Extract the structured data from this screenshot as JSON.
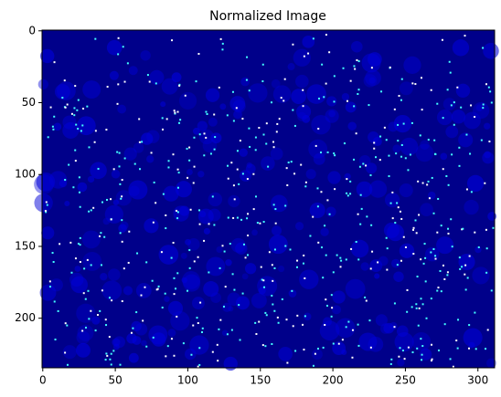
{
  "chart_data": {
    "type": "image",
    "title": "Normalized Image",
    "xlim": [
      -0.5,
      311.5
    ],
    "ylim": [
      234.5,
      -0.5
    ],
    "xticks": [
      0,
      50,
      100,
      150,
      200,
      250,
      300
    ],
    "yticks": [
      0,
      50,
      100,
      150,
      200
    ]
  }
}
